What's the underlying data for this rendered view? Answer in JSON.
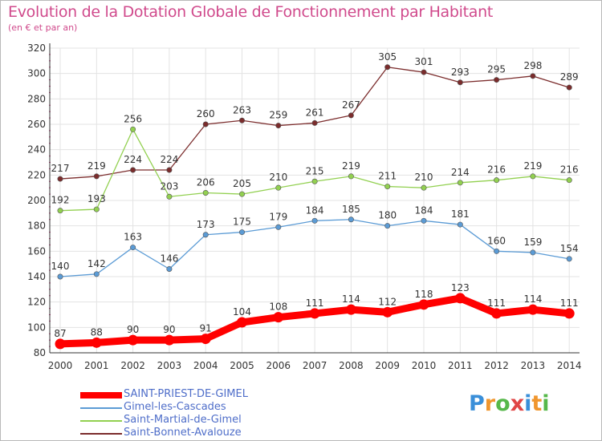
{
  "title": "Evolution de la Dotation Globale de Fonctionnement par Habitant",
  "subtitle": "(en € et par an)",
  "logo": {
    "text": "Proxiti",
    "letter_colors": [
      "#3a8fd9",
      "#f0962e",
      "#56b84a",
      "#e04545",
      "#3a8fd9",
      "#f0962e",
      "#56b84a"
    ]
  },
  "chart_data": {
    "type": "line",
    "title": "Evolution de la Dotation Globale de Fonctionnement par Habitant",
    "subtitle": "(en € et par an)",
    "xlabel": "",
    "ylabel": "",
    "x": [
      "2000",
      "2001",
      "2002",
      "2003",
      "2004",
      "2005",
      "2006",
      "2007",
      "2008",
      "2009",
      "2010",
      "2011",
      "2012",
      "2013",
      "2014"
    ],
    "ylim": [
      80,
      320
    ],
    "yticks": [
      80,
      100,
      120,
      140,
      160,
      180,
      200,
      220,
      240,
      260,
      280,
      300,
      320
    ],
    "grid": true,
    "legend_position": "bottom-left",
    "series": [
      {
        "name": "SAINT-PRIEST-DE-GIMEL",
        "color": "#ff0000",
        "values": [
          87,
          88,
          90,
          90,
          91,
          104,
          108,
          111,
          114,
          112,
          118,
          123,
          111,
          114,
          111
        ]
      },
      {
        "name": "Gimel-les-Cascades",
        "color": "#5b9bd5",
        "values": [
          140,
          142,
          163,
          146,
          173,
          175,
          179,
          184,
          185,
          180,
          184,
          181,
          160,
          159,
          154
        ]
      },
      {
        "name": "Saint-Martial-de-Gimel",
        "color": "#92d050",
        "values": [
          192,
          193,
          256,
          203,
          206,
          205,
          210,
          215,
          219,
          211,
          210,
          214,
          216,
          219,
          216
        ]
      },
      {
        "name": "Saint-Bonnet-Avalouze",
        "color": "#7b2c2c",
        "values": [
          217,
          219,
          224,
          224,
          260,
          263,
          259,
          261,
          267,
          305,
          301,
          293,
          295,
          298,
          289
        ]
      }
    ]
  }
}
